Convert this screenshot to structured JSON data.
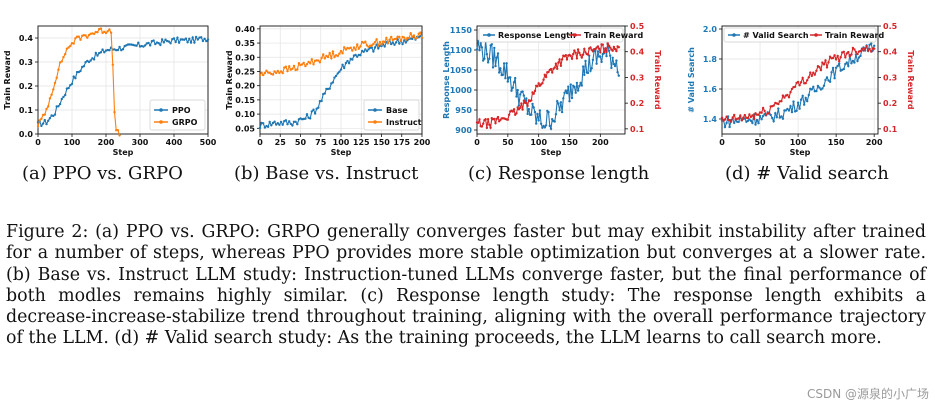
{
  "chart_data": [
    {
      "id": "a",
      "type": "line",
      "xlabel": "Step",
      "ylabel": "Train Reward",
      "xlim": [
        0,
        500
      ],
      "ylim": [
        0.0,
        0.45
      ],
      "xticks": [
        "0",
        "100",
        "200",
        "300",
        "400",
        "500"
      ],
      "yticks": [
        "0.0",
        "0.1",
        "0.2",
        "0.3",
        "0.4"
      ],
      "legend": "bottom-right",
      "series": [
        {
          "name": "PPO",
          "color": "#1f77b4",
          "x": [
            0,
            25,
            50,
            75,
            100,
            125,
            150,
            175,
            200,
            250,
            300,
            350,
            400,
            450,
            500
          ],
          "y": [
            0.04,
            0.05,
            0.09,
            0.16,
            0.22,
            0.27,
            0.31,
            0.33,
            0.35,
            0.36,
            0.37,
            0.38,
            0.39,
            0.39,
            0.4
          ]
        },
        {
          "name": "GRPO",
          "color": "#ff7f0e",
          "x": [
            0,
            20,
            40,
            60,
            80,
            100,
            120,
            140,
            160,
            180,
            200,
            210,
            215,
            220,
            225,
            230,
            240
          ],
          "y": [
            0.04,
            0.08,
            0.17,
            0.27,
            0.34,
            0.38,
            0.4,
            0.41,
            0.42,
            0.43,
            0.43,
            0.44,
            0.42,
            0.3,
            0.1,
            0.01,
            0.0
          ]
        }
      ]
    },
    {
      "id": "b",
      "type": "line",
      "xlabel": "Step",
      "ylabel": "Train Reward",
      "xlim": [
        0,
        200
      ],
      "ylim": [
        0.03,
        0.41
      ],
      "xticks": [
        "0",
        "25",
        "50",
        "75",
        "100",
        "125",
        "150",
        "175",
        "200"
      ],
      "yticks": [
        "0.05",
        "0.10",
        "0.15",
        "0.20",
        "0.25",
        "0.30",
        "0.35",
        "0.40"
      ],
      "legend": "bottom-right",
      "series": [
        {
          "name": "Base",
          "color": "#1f77b4",
          "x": [
            0,
            20,
            40,
            60,
            70,
            80,
            90,
            100,
            110,
            120,
            140,
            160,
            180,
            200
          ],
          "y": [
            0.06,
            0.07,
            0.07,
            0.09,
            0.12,
            0.17,
            0.22,
            0.26,
            0.29,
            0.31,
            0.33,
            0.35,
            0.36,
            0.37
          ]
        },
        {
          "name": "Instruct",
          "color": "#ff7f0e",
          "x": [
            0,
            20,
            40,
            60,
            80,
            100,
            120,
            140,
            160,
            180,
            200
          ],
          "y": [
            0.24,
            0.25,
            0.26,
            0.28,
            0.3,
            0.32,
            0.34,
            0.35,
            0.36,
            0.37,
            0.38
          ]
        }
      ]
    },
    {
      "id": "c",
      "type": "line",
      "xlabel": "Step",
      "ylabel": "Response Length",
      "y2label": "Train Reward",
      "xlim": [
        0,
        240
      ],
      "ylim": [
        890,
        1160
      ],
      "y2lim": [
        0.08,
        0.5
      ],
      "xticks": [
        "0",
        "50",
        "100",
        "150",
        "200"
      ],
      "yticks": [
        "900",
        "950",
        "1000",
        "1050",
        "1100",
        "1150"
      ],
      "y2ticks": [
        "0.1",
        "0.2",
        "0.3",
        "0.4",
        "0.5"
      ],
      "legend": "top",
      "series": [
        {
          "name": "Response Length",
          "color": "#1f77b4",
          "axis": "left",
          "x": [
            0,
            10,
            20,
            30,
            40,
            50,
            60,
            70,
            80,
            90,
            100,
            110,
            120,
            130,
            140,
            150,
            160,
            170,
            180,
            190,
            200,
            210,
            220,
            230
          ],
          "y": [
            1110,
            1100,
            1090,
            1080,
            1060,
            1040,
            1010,
            985,
            960,
            940,
            925,
            920,
            930,
            945,
            970,
            995,
            1020,
            1040,
            1060,
            1075,
            1085,
            1090,
            1080,
            1060
          ]
        },
        {
          "name": "Train Reward",
          "color": "#d62728",
          "axis": "right",
          "x": [
            0,
            20,
            40,
            60,
            80,
            100,
            120,
            140,
            160,
            180,
            200,
            220,
            230
          ],
          "y": [
            0.12,
            0.12,
            0.14,
            0.16,
            0.2,
            0.27,
            0.33,
            0.37,
            0.39,
            0.4,
            0.41,
            0.42,
            0.42
          ]
        }
      ]
    },
    {
      "id": "d",
      "type": "line",
      "xlabel": "Step",
      "ylabel": "# Valid Search",
      "y2label": "Train Reward",
      "xlim": [
        0,
        205
      ],
      "ylim": [
        1.3,
        2.02
      ],
      "y2lim": [
        0.08,
        0.5
      ],
      "xticks": [
        "0",
        "50",
        "100",
        "150",
        "200"
      ],
      "yticks": [
        "1.4",
        "1.6",
        "1.8",
        "2.0"
      ],
      "y2ticks": [
        "0.1",
        "0.2",
        "0.3",
        "0.4",
        "0.5"
      ],
      "legend": "top",
      "series": [
        {
          "name": "# Valid Search",
          "color": "#1f77b4",
          "axis": "left",
          "x": [
            0,
            20,
            40,
            60,
            80,
            100,
            120,
            140,
            160,
            180,
            200
          ],
          "y": [
            1.38,
            1.39,
            1.4,
            1.41,
            1.44,
            1.5,
            1.58,
            1.68,
            1.76,
            1.83,
            1.88
          ]
        },
        {
          "name": "Train Reward",
          "color": "#d62728",
          "axis": "right",
          "x": [
            0,
            20,
            40,
            60,
            80,
            100,
            120,
            140,
            160,
            180,
            200
          ],
          "y": [
            0.13,
            0.14,
            0.15,
            0.17,
            0.22,
            0.27,
            0.32,
            0.36,
            0.39,
            0.41,
            0.42
          ]
        }
      ]
    }
  ],
  "subcaptions": {
    "a": "(a) PPO vs. GRPO",
    "b": "(b) Base vs. Instruct",
    "c": "(c) Response length",
    "d": "(d) # Valid search"
  },
  "caption": "Figure 2: (a) PPO vs. GRPO: GRPO generally converges faster but may exhibit instability after trained for a number of steps, whereas PPO provides more stable optimization but converges at a slower rate. (b) Base vs. Instruct LLM study: Instruction-tuned LLMs converge faster, but the final performance of both modles remains highly similar. (c) Response length study: The response length exhibits a decrease-increase-stabilize trend throughout training, aligning with the overall performance trajectory of the LLM. (d) # Valid search study: As the training proceeds, the LLM learns to call search more.",
  "watermark": "CSDN @源泉的小广场"
}
